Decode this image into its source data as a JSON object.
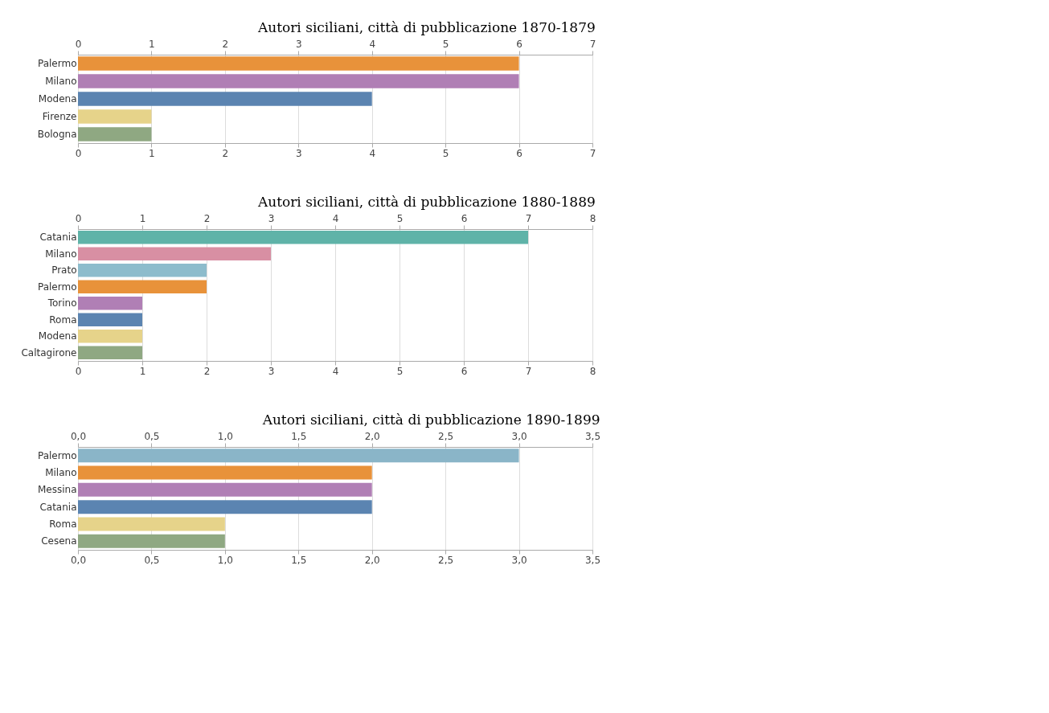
{
  "chart_data": [
    {
      "type": "bar",
      "orientation": "horizontal",
      "title": "Autori siciliani, città di pubblicazione 1870-1879",
      "categories": [
        "Palermo",
        "Milano",
        "Modena",
        "Firenze",
        "Bologna"
      ],
      "values": [
        6,
        6,
        4,
        1,
        1
      ],
      "colors": [
        "#e8923a",
        "#b07fb5",
        "#5b84b1",
        "#e6d38a",
        "#8fa882"
      ],
      "xlim": [
        0,
        7
      ],
      "xticks": [
        0,
        1,
        2,
        3,
        4,
        5,
        6,
        7
      ],
      "x2lim": [
        0,
        7
      ],
      "x2ticks": [
        0,
        1,
        2,
        3,
        4,
        5,
        6,
        7
      ],
      "grid": "x"
    },
    {
      "type": "bar",
      "orientation": "horizontal",
      "title": "Autori siciliani, città di pubblicazione 1880-1889",
      "categories": [
        "Catania",
        "Milano",
        "Prato",
        "Palermo",
        "Torino",
        "Roma",
        "Modena",
        "Caltagirone"
      ],
      "values": [
        7,
        3,
        2,
        2,
        1,
        1,
        1,
        1
      ],
      "colors": [
        "#5fb3a8",
        "#d88fa3",
        "#8dbccc",
        "#e8923a",
        "#b07fb5",
        "#5b84b1",
        "#e6d38a",
        "#8fa882"
      ],
      "xlim": [
        0,
        8
      ],
      "xticks": [
        0,
        1,
        2,
        3,
        4,
        5,
        6,
        7,
        8
      ],
      "x2lim": [
        0,
        8
      ],
      "x2ticks": [
        0,
        1,
        2,
        3,
        4,
        5,
        6,
        7,
        8
      ],
      "grid": "x"
    },
    {
      "type": "bar",
      "orientation": "horizontal",
      "title": "Autori siciliani, città di pubblicazione 1890-1899",
      "categories": [
        "Palermo",
        "Milano",
        "Messina",
        "Catania",
        "Roma",
        "Cesena"
      ],
      "values": [
        3,
        2,
        2,
        2,
        1,
        1
      ],
      "colors": [
        "#8ab5c8",
        "#e8923a",
        "#b07fb5",
        "#5b84b1",
        "#e6d38a",
        "#8fa882"
      ],
      "xlim": [
        0,
        3.5
      ],
      "xticks": [
        {
          "value": 0,
          "label": "0,0"
        },
        {
          "value": 0.5,
          "label": "0,5"
        },
        {
          "value": 1,
          "label": "1,0"
        },
        {
          "value": 1.5,
          "label": "1,5"
        },
        {
          "value": 2,
          "label": "2,0"
        },
        {
          "value": 2.5,
          "label": "2,5"
        },
        {
          "value": 3,
          "label": "3,0"
        },
        {
          "value": 3.5,
          "label": "3,5"
        }
      ],
      "x2lim": [
        0,
        3.5
      ],
      "x2ticks": [
        {
          "value": 0,
          "label": "0,0"
        },
        {
          "value": 0.5,
          "label": "0,5"
        },
        {
          "value": 1,
          "label": "1,0"
        },
        {
          "value": 1.5,
          "label": "1,5"
        },
        {
          "value": 2,
          "label": "2,0"
        },
        {
          "value": 2.5,
          "label": "2,5"
        },
        {
          "value": 3,
          "label": "3,0"
        },
        {
          "value": 3.5,
          "label": "3,5"
        }
      ],
      "grid": "x"
    }
  ]
}
